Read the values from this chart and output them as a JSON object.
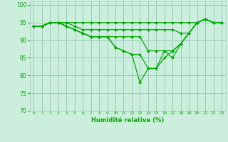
{
  "xlabel": "Humidité relative (%)",
  "xlim": [
    0,
    23
  ],
  "ylim": [
    70,
    101
  ],
  "yticks": [
    70,
    75,
    80,
    85,
    90,
    95,
    100
  ],
  "bg_color": "#cceedd",
  "grid_color": "#99ccbb",
  "line_color": "#00aa00",
  "curves": [
    [
      94,
      94,
      95,
      95,
      95,
      95,
      95,
      95,
      95,
      95,
      95,
      95,
      95,
      95,
      95,
      95,
      95,
      95,
      95,
      95,
      95,
      96,
      95,
      95
    ],
    [
      94,
      94,
      95,
      95,
      95,
      94,
      93,
      93,
      93,
      93,
      93,
      93,
      93,
      93,
      93,
      93,
      93,
      93,
      92,
      92,
      95,
      96,
      95,
      95
    ],
    [
      94,
      94,
      95,
      95,
      94,
      93,
      92,
      91,
      91,
      91,
      91,
      91,
      91,
      91,
      87,
      87,
      87,
      87,
      89,
      92,
      95,
      96,
      95,
      95
    ],
    [
      94,
      94,
      95,
      95,
      94,
      93,
      92,
      91,
      91,
      91,
      88,
      87,
      86,
      86,
      82,
      82,
      85,
      87,
      89,
      92,
      95,
      96,
      95,
      95
    ],
    [
      94,
      94,
      95,
      95,
      94,
      93,
      92,
      91,
      91,
      91,
      88,
      87,
      86,
      78,
      82,
      82,
      87,
      85,
      89,
      92,
      95,
      96,
      95,
      95
    ]
  ]
}
